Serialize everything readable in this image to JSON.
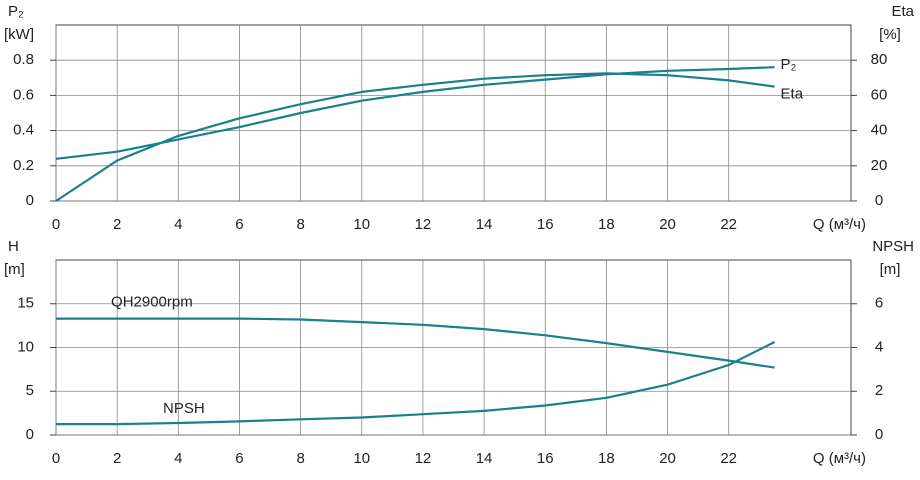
{
  "chart_data": [
    {
      "type": "line",
      "x": [
        0,
        2,
        4,
        6,
        8,
        10,
        12,
        14,
        16,
        18,
        20,
        22,
        23.5
      ],
      "series": [
        {
          "name": "P₂",
          "color": "#1a7f8e",
          "axis": "y",
          "values": [
            0.24,
            0.28,
            0.35,
            0.42,
            0.5,
            0.57,
            0.62,
            0.66,
            0.69,
            0.72,
            0.74,
            0.75,
            0.76
          ]
        },
        {
          "name": "Eta",
          "color": "#1a7f8e",
          "axis": "y2",
          "values": [
            0,
            23,
            37,
            47,
            55,
            62,
            66,
            69.5,
            71.5,
            72.5,
            71.5,
            68.5,
            65
          ]
        }
      ],
      "xlim": [
        0,
        26
      ],
      "xticks": [
        0,
        2,
        4,
        6,
        8,
        10,
        12,
        14,
        16,
        18,
        20,
        22
      ],
      "ylim": [
        0,
        1
      ],
      "yticks": [
        0,
        0.2,
        0.4,
        0.6,
        0.8
      ],
      "y2lim": [
        0,
        100
      ],
      "y2ticks": [
        0,
        20,
        40,
        60,
        80
      ],
      "ylabel": [
        "P₂",
        "[kW]"
      ],
      "y2label": [
        "Eta",
        "[%]"
      ],
      "xlabel": "Q (м³/ч)",
      "grid": true
    },
    {
      "type": "line",
      "x": [
        0,
        2,
        4,
        6,
        8,
        10,
        12,
        14,
        16,
        18,
        20,
        22,
        23.5
      ],
      "series": [
        {
          "name": "QH2900rpm",
          "color": "#1a7f8e",
          "axis": "y",
          "values": [
            13.3,
            13.3,
            13.3,
            13.3,
            13.2,
            12.9,
            12.6,
            12.1,
            11.4,
            10.5,
            9.5,
            8.5,
            7.7
          ]
        },
        {
          "name": "NPSH",
          "color": "#1a7f8e",
          "axis": "y2",
          "values": [
            0.5,
            0.5,
            0.55,
            0.62,
            0.72,
            0.8,
            0.95,
            1.1,
            1.35,
            1.7,
            2.3,
            3.2,
            4.25
          ]
        }
      ],
      "xlim": [
        0,
        26
      ],
      "xticks": [
        0,
        2,
        4,
        6,
        8,
        10,
        12,
        14,
        16,
        18,
        20,
        22
      ],
      "ylim": [
        0,
        20
      ],
      "yticks": [
        0,
        5,
        10,
        15
      ],
      "y2lim": [
        0,
        8
      ],
      "y2ticks": [
        0,
        2,
        4,
        6
      ],
      "ylabel": [
        "H",
        "[m]"
      ],
      "y2label": [
        "NPSH",
        "[m]"
      ],
      "xlabel": "Q (м³/ч)",
      "grid": true
    }
  ]
}
